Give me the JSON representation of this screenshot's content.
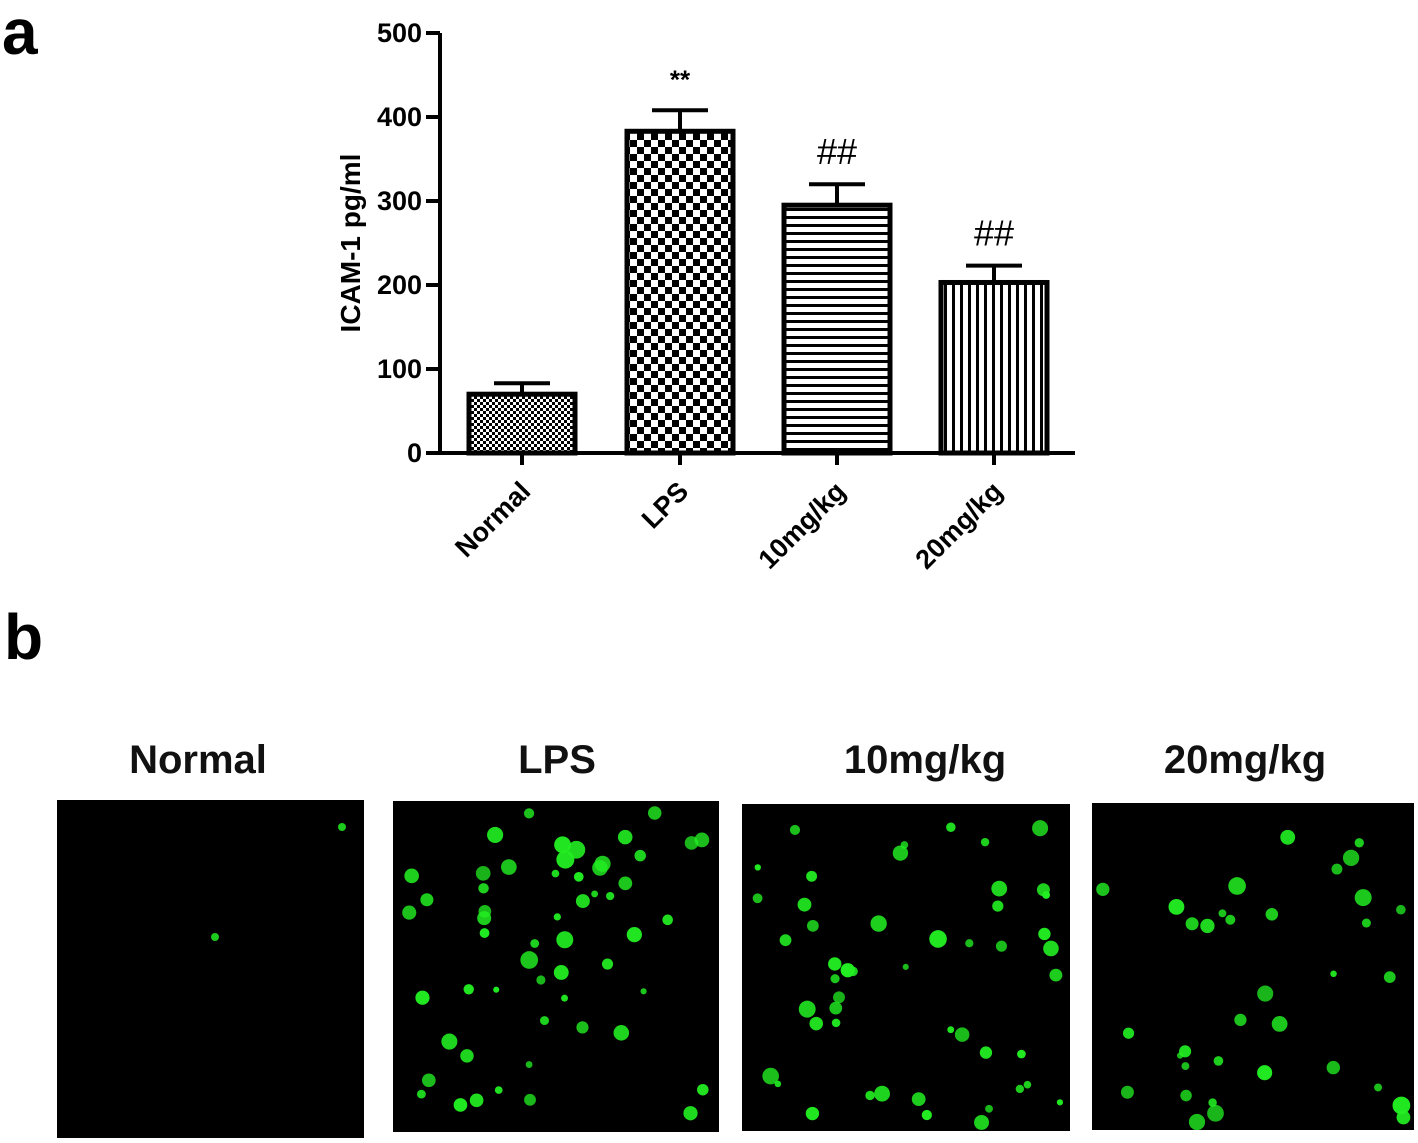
{
  "panels": {
    "a": "a",
    "b": "b"
  },
  "chart_data": {
    "type": "bar",
    "ylabel": "ICAM-1 pg/ml",
    "xlabel": "",
    "ylim": [
      0,
      500
    ],
    "yticks": [
      0,
      100,
      200,
      300,
      400,
      500
    ],
    "categories": [
      "Normal",
      "LPS",
      "10mg/kg",
      "20mg/kg"
    ],
    "values": [
      70,
      383,
      295,
      203
    ],
    "errors": [
      13,
      25,
      25,
      20
    ],
    "annotations": [
      "",
      "**",
      "##",
      "##"
    ]
  },
  "micrographs": {
    "labels": [
      "Normal",
      "LPS",
      "10mg/kg",
      "20mg/kg"
    ],
    "cell_color": "#22ee22",
    "background": "#000000",
    "cell_counts": [
      2,
      55,
      50,
      35
    ]
  }
}
